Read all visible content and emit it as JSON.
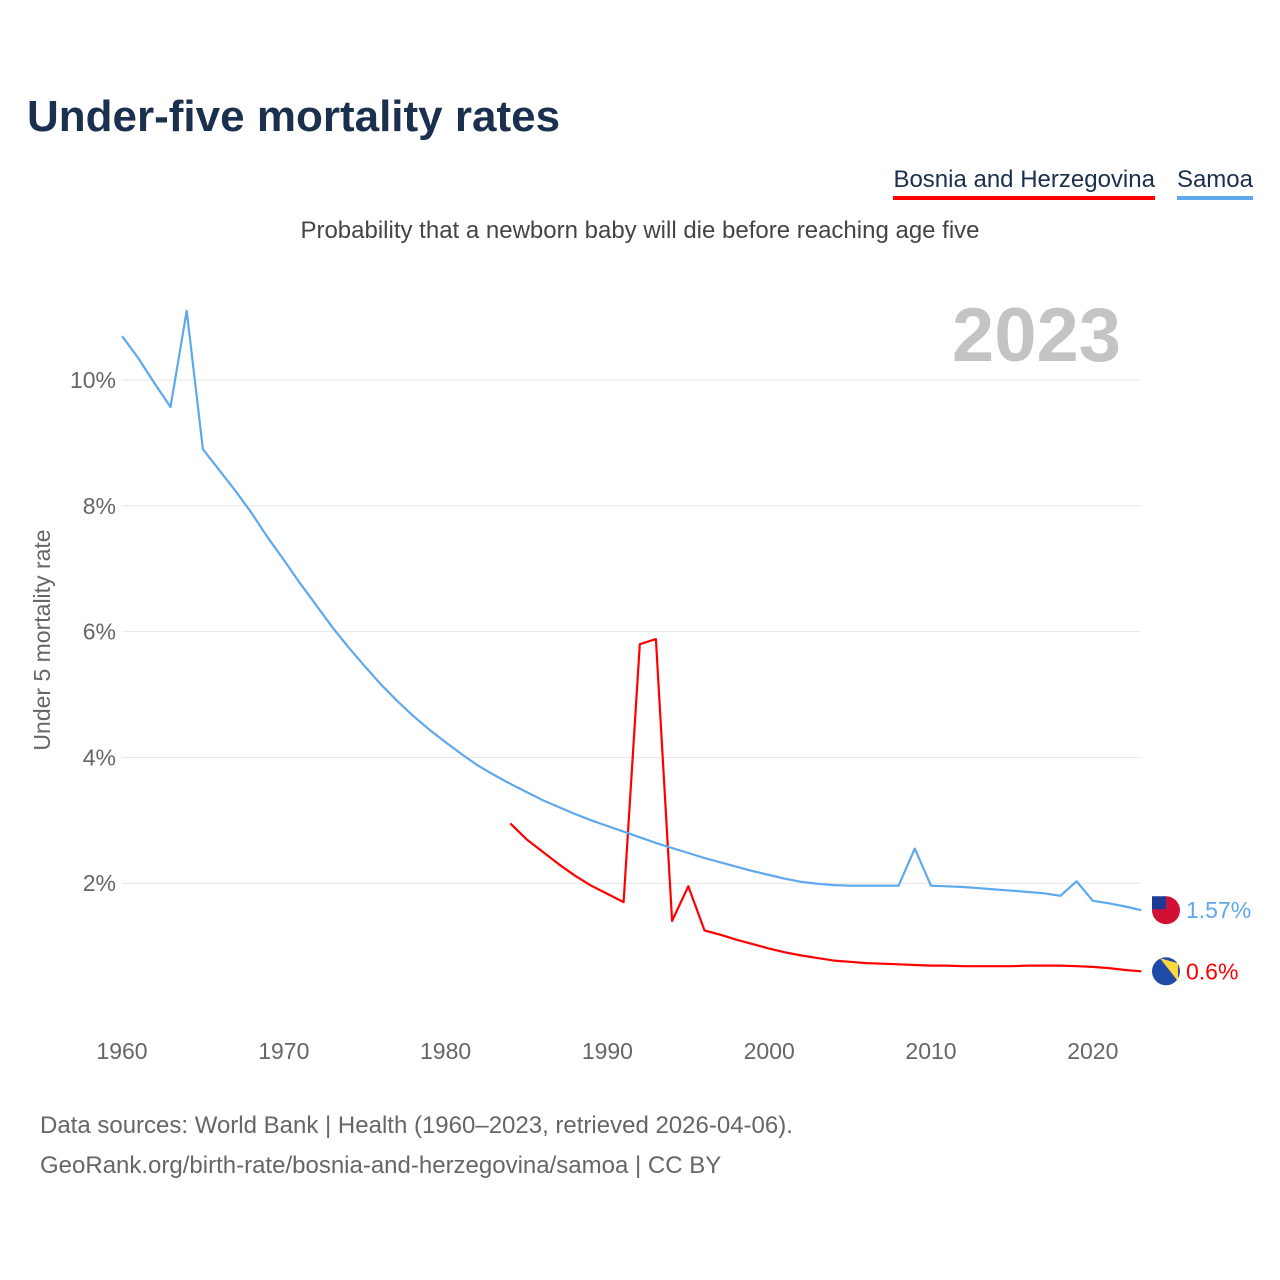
{
  "title": "Under-five mortality rates",
  "subtitle": "Probability that a newborn baby will die before reaching age five",
  "source_lines": [
    "Data sources: World Bank | Health (1960–2023, retrieved 2026-04-06).",
    "GeoRank.org/birth-rate/bosnia-and-herzegovina/samoa | CC BY"
  ],
  "chart_data": {
    "type": "line",
    "title": "Under-five mortality rates",
    "ylabel": "Under 5 mortality rate",
    "xlabel": "",
    "year_label": "2023",
    "xlim": [
      1960,
      2023
    ],
    "ylim": [
      0,
      11.5
    ],
    "xticks": [
      1960,
      1970,
      1980,
      1990,
      2000,
      2010,
      2020
    ],
    "yticks": [
      2,
      4,
      6,
      8,
      10
    ],
    "ytick_labels": [
      "2%",
      "4%",
      "6%",
      "8%",
      "10%"
    ],
    "grid": true,
    "legend_placement": "top-right",
    "series": [
      {
        "name": "Bosnia and Herzegovina",
        "color": "#ff0000",
        "end_label": "0.6%",
        "start_year": 1984,
        "values": [
          2.95,
          2.7,
          2.5,
          2.3,
          2.12,
          1.96,
          1.83,
          1.7,
          5.8,
          5.88,
          1.4,
          1.95,
          1.25,
          1.18,
          1.1,
          1.03,
          0.96,
          0.9,
          0.85,
          0.81,
          0.77,
          0.75,
          0.73,
          0.72,
          0.71,
          0.7,
          0.69,
          0.69,
          0.68,
          0.68,
          0.68,
          0.68,
          0.69,
          0.69,
          0.69,
          0.68,
          0.67,
          0.65,
          0.62,
          0.6
        ]
      },
      {
        "name": "Samoa",
        "color": "#5ea8ec",
        "end_label": "1.57%",
        "start_year": 1960,
        "values": [
          10.7,
          10.35,
          9.95,
          9.57,
          11.1,
          8.9,
          8.57,
          8.24,
          7.89,
          7.5,
          7.14,
          6.77,
          6.42,
          6.07,
          5.75,
          5.45,
          5.16,
          4.9,
          4.66,
          4.44,
          4.24,
          4.05,
          3.87,
          3.72,
          3.58,
          3.45,
          3.32,
          3.21,
          3.1,
          3.0,
          2.91,
          2.82,
          2.73,
          2.64,
          2.56,
          2.48,
          2.4,
          2.33,
          2.26,
          2.19,
          2.13,
          2.07,
          2.02,
          1.99,
          1.97,
          1.96,
          1.96,
          1.96,
          1.96,
          2.55,
          1.96,
          1.95,
          1.94,
          1.92,
          1.9,
          1.88,
          1.86,
          1.84,
          1.8,
          2.03,
          1.72,
          1.68,
          1.63,
          1.57
        ]
      }
    ]
  }
}
